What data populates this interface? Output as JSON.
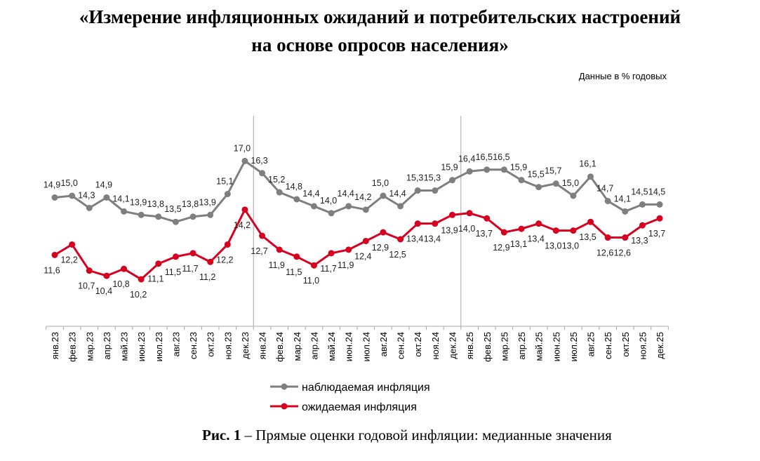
{
  "header": {
    "title_line1": "«Измерение инфляционных ожиданий и потребительских настроений",
    "title_line2": "на основе опросов населения»",
    "units": "Данные в % годовых"
  },
  "caption": {
    "bold": "Рис. 1",
    "text": " – Прямые оценки годовой инфляции: медианные значения"
  },
  "chart_data": {
    "type": "line",
    "title": "",
    "xlabel": "",
    "ylabel": "",
    "ylim": [
      7.5,
      18.5
    ],
    "grid": false,
    "legend_placement": "bottom",
    "categories": [
      "янв.23",
      "фев.23",
      "мар.23",
      "апр.23",
      "май.23",
      "июн.23",
      "июл.23",
      "авг.23",
      "сен.23",
      "окт.23",
      "ноя.23",
      "дек.23",
      "янв.24",
      "фев.24",
      "мар.24",
      "апр.24",
      "май.24",
      "июн.24",
      "июл.24",
      "авг.24",
      "сен.24",
      "окт.24",
      "ноя.24",
      "дек.24",
      "янв.25",
      "фев.25",
      "мар.25",
      "апр.25",
      "май.25",
      "июн.25",
      "июл.25",
      "авг.25",
      "сен.25",
      "окт.25",
      "ноя.25",
      "дек.25"
    ],
    "year_separators_after": [
      "дек.23",
      "дек.24"
    ],
    "series": [
      {
        "name": "наблюдаемая инфляция",
        "color": "#7f7f7f",
        "label_position": "above",
        "values": [
          14.9,
          15.0,
          14.3,
          14.9,
          14.1,
          13.9,
          13.8,
          13.5,
          13.8,
          13.9,
          15.1,
          17.0,
          16.3,
          15.2,
          14.8,
          14.4,
          14.0,
          14.4,
          14.2,
          15.0,
          14.4,
          15.3,
          15.3,
          15.9,
          16.4,
          16.5,
          16.5,
          15.9,
          15.5,
          15.7,
          15.0,
          16.1,
          14.7,
          14.1,
          14.5,
          14.5
        ]
      },
      {
        "name": "ожидаемая инфляция",
        "color": "#d7001e",
        "label_position": "below",
        "values": [
          11.6,
          12.2,
          10.7,
          10.4,
          10.8,
          10.2,
          11.1,
          11.5,
          11.7,
          11.2,
          12.2,
          14.2,
          12.7,
          11.9,
          11.5,
          11.0,
          11.7,
          11.9,
          12.4,
          12.9,
          12.5,
          13.4,
          13.4,
          13.9,
          14.0,
          13.7,
          12.9,
          13.1,
          13.4,
          13.0,
          13.0,
          13.5,
          12.6,
          12.6,
          13.3,
          13.7
        ]
      }
    ]
  }
}
